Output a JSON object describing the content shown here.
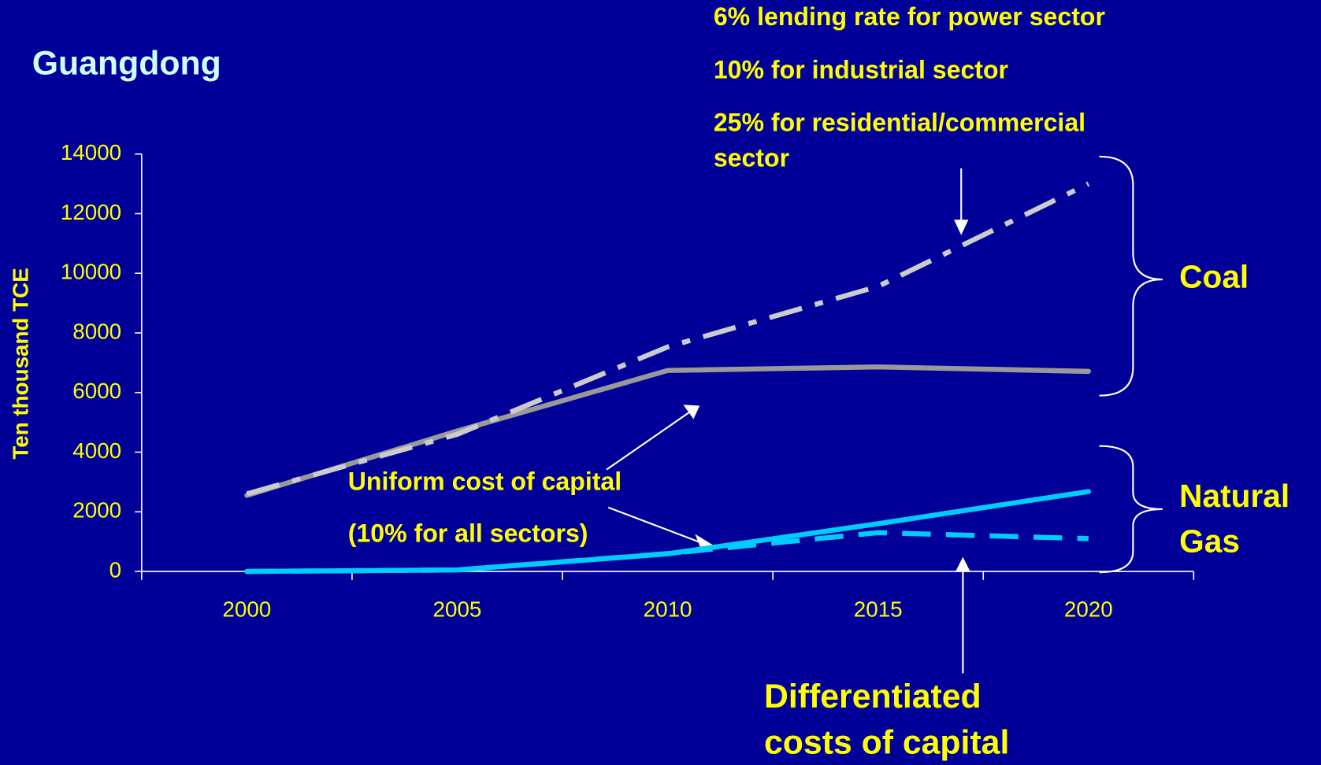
{
  "chart_data": {
    "type": "line",
    "title": "Guangdong",
    "y_label": "Ten thousand TCE",
    "categories": [
      "2000",
      "2005",
      "2010",
      "2015",
      "2020"
    ],
    "ylim": [
      0,
      14000
    ],
    "yticks": [
      0,
      2000,
      4000,
      6000,
      8000,
      10000,
      12000,
      14000
    ],
    "series": [
      {
        "color": "#999999",
        "dash": "solid",
        "values": [
          2550,
          4710,
          6740,
          6860,
          6710
        ]
      },
      {
        "color": "#cccccc",
        "dash": "dashdot",
        "values": [
          2600,
          4600,
          7530,
          9560,
          13000
        ]
      },
      {
        "color": "#00ccff",
        "dash": "solid",
        "values": [
          0,
          50,
          590,
          1600,
          2680
        ]
      },
      {
        "color": "#00ccff",
        "dash": "dashed",
        "values": [
          0,
          50,
          600,
          1300,
          1100
        ]
      }
    ],
    "annotations": [
      "6% lending rate for power sector",
      "10% for industrial sector",
      "25% for residential/commercial",
      "sector",
      "Uniform cost of capital",
      "(10% for all sectors)",
      "Coal",
      "Natural",
      "Gas",
      "Differentiated",
      "costs of capital"
    ]
  }
}
